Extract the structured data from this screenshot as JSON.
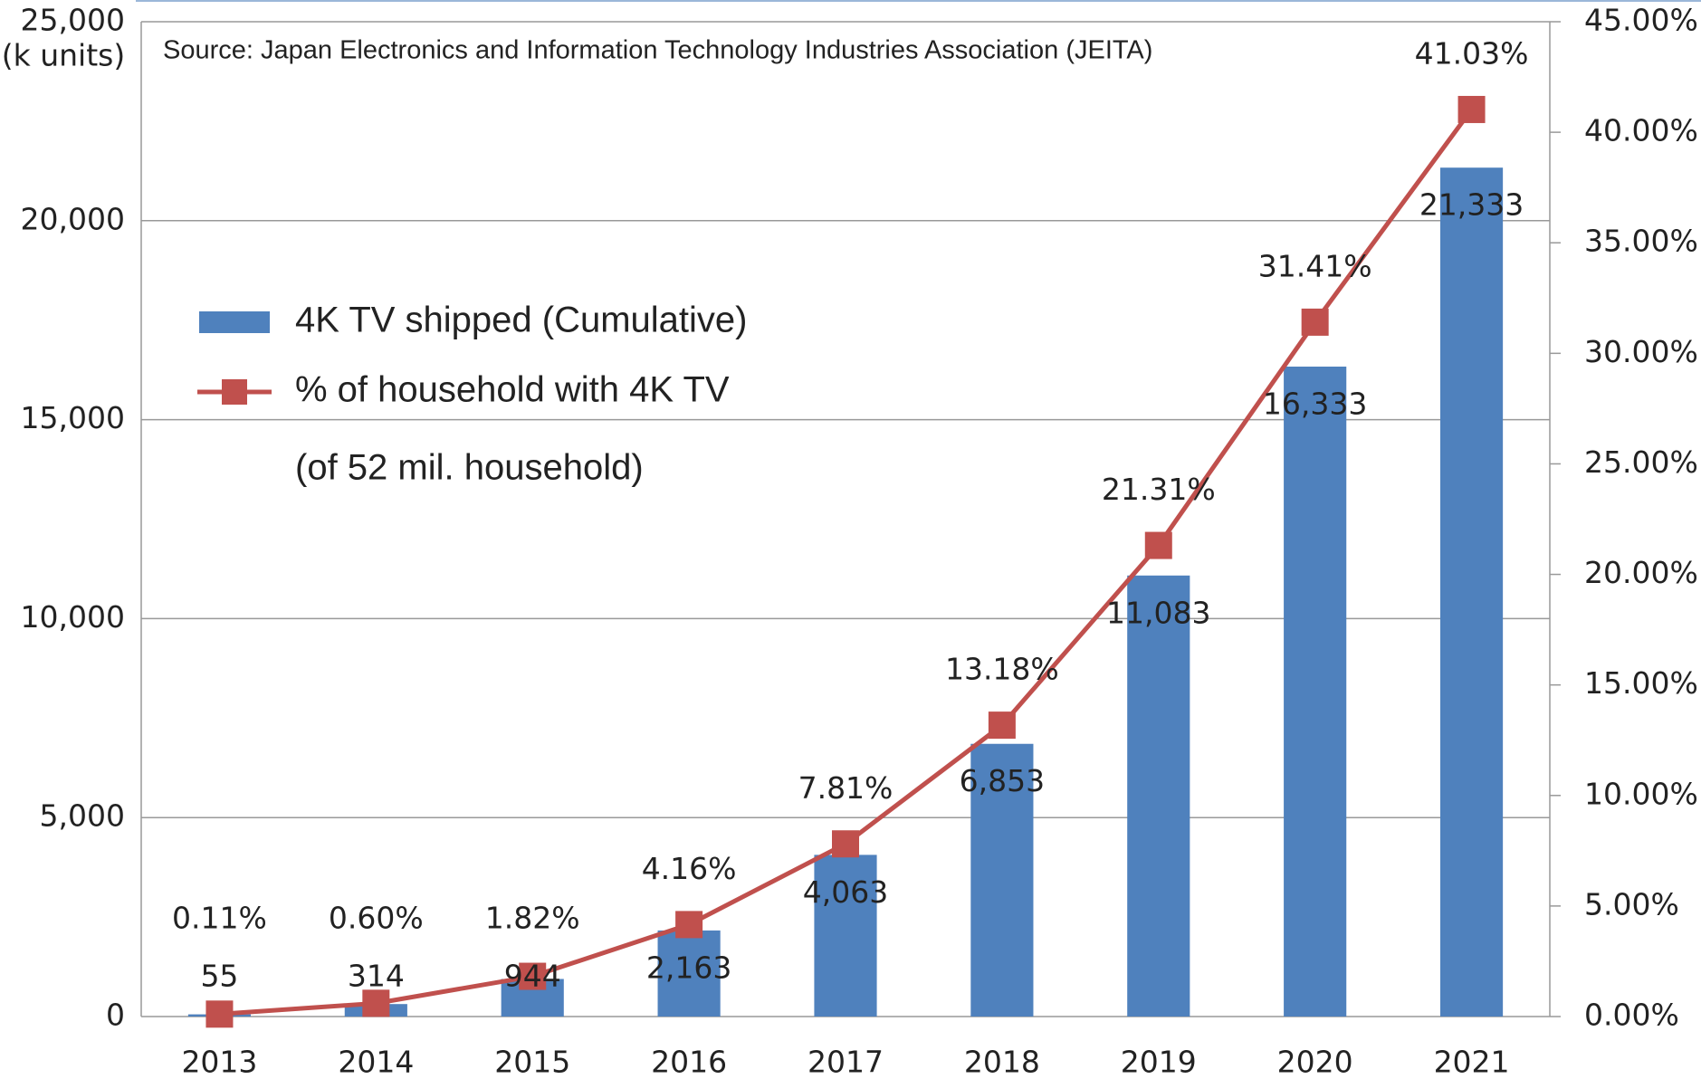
{
  "chart_data": {
    "type": "bar",
    "subtitle": "Source: Japan Electronics and Information Technology Industries Association (JEITA)",
    "y_axis_label": "(k units)",
    "legend_note": "(of 52 mil. household)",
    "categories": [
      "2013",
      "2014",
      "2015",
      "2016",
      "2017",
      "2018",
      "2019",
      "2020",
      "2021"
    ],
    "series": [
      {
        "name": "4K TV shipped (Cumulative)",
        "type": "bar",
        "color": "#4f81bd",
        "values": [
          55,
          314,
          944,
          2163,
          4063,
          6853,
          11083,
          16333,
          21333
        ],
        "value_labels": [
          "55",
          "314",
          "944",
          "2,163",
          "4,063",
          "6,853",
          "11,083",
          "16,333",
          "21,333"
        ]
      },
      {
        "name": "% of household with 4K TV",
        "type": "line",
        "axis": "y2",
        "color": "#c0504d",
        "values": [
          0.11,
          0.6,
          1.82,
          4.16,
          7.81,
          13.18,
          21.31,
          31.41,
          41.03
        ],
        "value_labels": [
          "0.11%",
          "0.60%",
          "1.82%",
          "4.16%",
          "7.81%",
          "13.18%",
          "21.31%",
          "31.41%",
          "41.03%"
        ]
      }
    ],
    "ylim": [
      0,
      25000
    ],
    "yticks": [
      0,
      {
        "value": 5000,
        "label": "5,000"
      },
      {
        "value": 10000,
        "label": "10,000"
      },
      {
        "value": 15000,
        "label": "15,000"
      },
      {
        "value": 20000,
        "label": "20,000"
      },
      {
        "value": 25000,
        "label": "25,000"
      }
    ],
    "y2lim": [
      0,
      45
    ],
    "y2ticks": [
      {
        "value": 0,
        "label": "0.00%"
      },
      {
        "value": 5,
        "label": "5.00%"
      },
      {
        "value": 10,
        "label": "10.00%"
      },
      {
        "value": 15,
        "label": "15.00%"
      },
      {
        "value": 20,
        "label": "20.00%"
      },
      {
        "value": 25,
        "label": "25.00%"
      },
      {
        "value": 30,
        "label": "30.00%"
      },
      {
        "value": 35,
        "label": "35.00%"
      },
      {
        "value": 40,
        "label": "40.00%"
      },
      {
        "value": 45,
        "label": "45.00%"
      }
    ],
    "grid": true,
    "legend": "upper left"
  }
}
